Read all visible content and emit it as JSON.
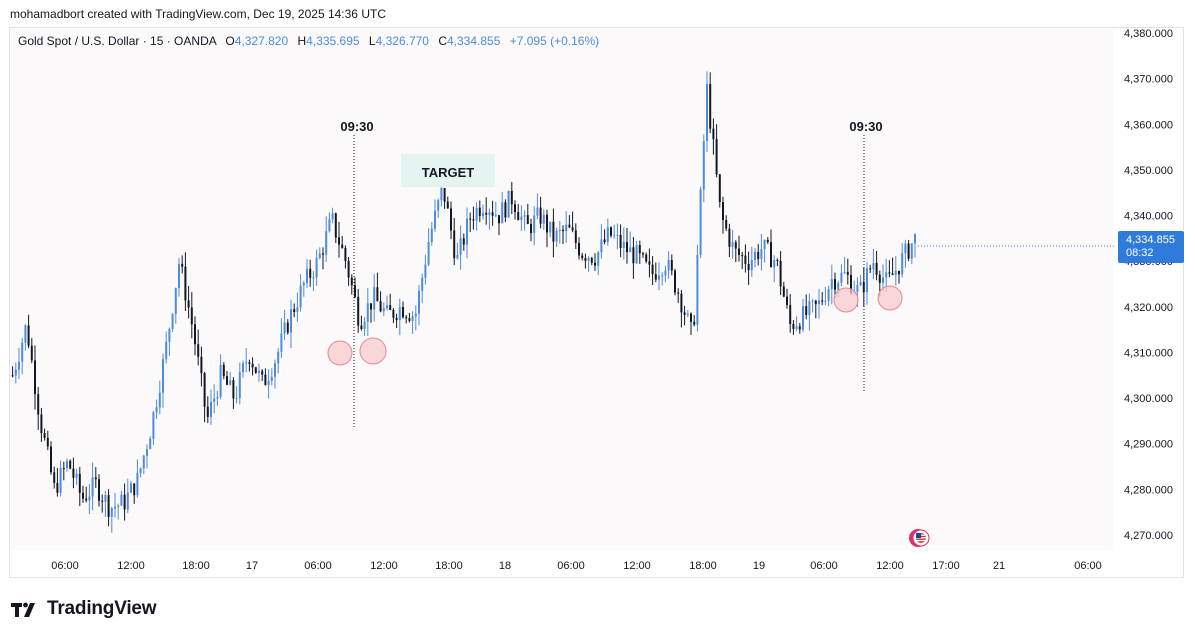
{
  "header": {
    "attribution": "mohamadbort created with TradingView.com, Dec 19, 2025 14:36 UTC"
  },
  "legend": {
    "symbol": "Gold Spot / U.S. Dollar · 15 · OANDA",
    "o_label": "O",
    "o_value": "4,327.820",
    "h_label": "H",
    "h_value": "4,335.695",
    "l_label": "L",
    "l_value": "4,326.770",
    "c_label": "C",
    "c_value": "4,334.855",
    "change": "+7.095 (+0.16%)"
  },
  "price_label": {
    "price": "4,334.855",
    "countdown": "08:32"
  },
  "annotations": {
    "time_mark_1": "09:30",
    "time_mark_2": "09:30",
    "target": "TARGET"
  },
  "brand": {
    "logo_text": "TradingView"
  },
  "colors": {
    "up_candle": "#4c8be0",
    "down_candle": "#131722",
    "target_box": "#e3f3ef",
    "circle_fill": "#f7c9cd",
    "circle_stroke": "#e8888f",
    "price_tag": "#2f7bdc"
  },
  "chart_data": {
    "type": "candlestick",
    "symbol": "XAUUSD",
    "timeframe": "15",
    "ylim": [
      4265,
      4385
    ],
    "y_ticks": [
      "4,380.000",
      "4,370.000",
      "4,360.000",
      "4,350.000",
      "4,340.000",
      "4,330.000",
      "4,320.000",
      "4,310.000",
      "4,300.000",
      "4,290.000",
      "4,280.000",
      "4,270.000"
    ],
    "x_ticks": [
      "06:00",
      "12:00",
      "18:00",
      "17",
      "06:00",
      "12:00",
      "18:00",
      "18",
      "06:00",
      "12:00",
      "18:00",
      "19",
      "06:00",
      "12:00",
      "17:00",
      "21",
      "06:00"
    ],
    "price_path": [
      [
        0,
        4305
      ],
      [
        1,
        4316
      ],
      [
        2,
        4295
      ],
      [
        3,
        4280
      ],
      [
        4,
        4286
      ],
      [
        5,
        4278
      ],
      [
        6,
        4281
      ],
      [
        7,
        4276
      ],
      [
        8,
        4277
      ],
      [
        9,
        4282
      ],
      [
        10,
        4294
      ],
      [
        11,
        4310
      ],
      [
        12,
        4330
      ],
      [
        13,
        4315
      ],
      [
        14,
        4295
      ],
      [
        15,
        4305
      ],
      [
        16,
        4300
      ],
      [
        17,
        4310
      ],
      [
        18,
        4303
      ],
      [
        19,
        4309
      ],
      [
        20,
        4318
      ],
      [
        21,
        4325
      ],
      [
        22,
        4330
      ],
      [
        23,
        4339
      ],
      [
        24,
        4330
      ],
      [
        25,
        4317
      ],
      [
        26,
        4322
      ],
      [
        27,
        4318
      ],
      [
        28,
        4320
      ],
      [
        29,
        4318
      ],
      [
        30,
        4335
      ],
      [
        31,
        4346
      ],
      [
        32,
        4330
      ],
      [
        33,
        4340
      ],
      [
        34,
        4343
      ],
      [
        35,
        4340
      ],
      [
        36,
        4344
      ],
      [
        37,
        4337
      ],
      [
        38,
        4340
      ],
      [
        39,
        4335
      ],
      [
        40,
        4337
      ],
      [
        41,
        4332
      ],
      [
        42,
        4331
      ],
      [
        43,
        4336
      ],
      [
        44,
        4333
      ],
      [
        45,
        4331
      ],
      [
        46,
        4327
      ],
      [
        47,
        4330
      ],
      [
        48,
        4323
      ],
      [
        49,
        4313
      ],
      [
        50,
        4368
      ],
      [
        51,
        4340
      ],
      [
        52,
        4332
      ],
      [
        53,
        4330
      ],
      [
        54,
        4333
      ],
      [
        55,
        4330
      ],
      [
        56,
        4316
      ],
      [
        57,
        4318
      ],
      [
        58,
        4320
      ],
      [
        59,
        4326
      ],
      [
        60,
        4327
      ],
      [
        61,
        4323
      ],
      [
        62,
        4330
      ],
      [
        63,
        4325
      ],
      [
        64,
        4330
      ],
      [
        65,
        4335
      ]
    ],
    "markers": [
      {
        "label": "09:30",
        "type": "vertical-dotted-line"
      },
      {
        "label": "09:30",
        "type": "vertical-dotted-line"
      },
      {
        "label": "TARGET",
        "type": "zone"
      }
    ],
    "grid": false
  }
}
